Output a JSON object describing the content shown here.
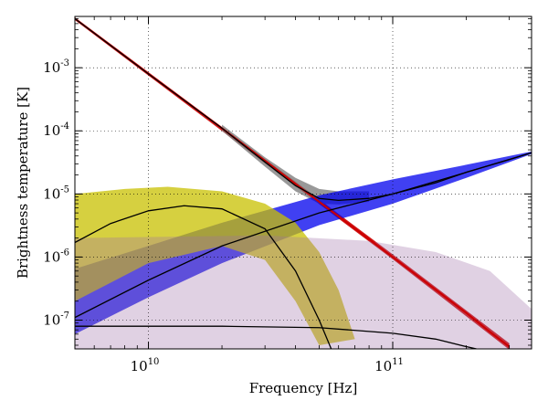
{
  "chart_data": {
    "type": "line",
    "xlabel": "Frequency [Hz]",
    "ylabel": "Brightness temperature [K]",
    "xscale": "log",
    "yscale": "log",
    "xlim": [
      5000000000.0,
      370000000000.0
    ],
    "ylim": [
      3.5e-08,
      0.0065
    ],
    "grid": true,
    "x_ticks": [
      {
        "value": 10000000000.0,
        "base": "10",
        "exp": "10"
      },
      {
        "value": 100000000000.0,
        "base": "10",
        "exp": "11"
      }
    ],
    "y_ticks": [
      {
        "value": 1e-07,
        "base": "10",
        "exp": "-7"
      },
      {
        "value": 1e-06,
        "base": "10",
        "exp": "-6"
      },
      {
        "value": 1e-05,
        "base": "10",
        "exp": "-5"
      },
      {
        "value": 0.0001,
        "base": "10",
        "exp": "-4"
      },
      {
        "value": 0.001,
        "base": "10",
        "exp": "-3"
      }
    ],
    "colors": {
      "total_band": "#808080",
      "powerlaw_band": "#cc0000",
      "rising_band": "#0000ee",
      "peaked_band": "#c8c000",
      "broad_band": "#a070a8",
      "fiducial_line": "#000000"
    },
    "series": [
      {
        "key": "powerlaw",
        "color": "#cc0000",
        "points": [
          [
            5000000000.0,
            0.006
          ],
          [
            10000000000.0,
            0.0008
          ],
          [
            20000000000.0,
            0.00011
          ],
          [
            50000000000.0,
            7.5e-06
          ],
          [
            100000000000.0,
            1e-06
          ],
          [
            200000000000.0,
            1.3e-07
          ],
          [
            250000000000.0,
            6.5e-08
          ],
          [
            300000000000.0,
            3.8e-08
          ]
        ]
      },
      {
        "key": "total",
        "color": "#000000",
        "points": [
          [
            5000000000.0,
            0.006
          ],
          [
            10000000000.0,
            0.0008
          ],
          [
            20000000000.0,
            0.00011
          ],
          [
            30000000000.0,
            3.2e-05
          ],
          [
            40000000000.0,
            1.35e-05
          ],
          [
            50000000000.0,
            8.5e-06
          ],
          [
            60000000000.0,
            7.9e-06
          ],
          [
            80000000000.0,
            8.5e-06
          ],
          [
            100000000000.0,
            1e-05
          ],
          [
            150000000000.0,
            1.5e-05
          ],
          [
            200000000000.0,
            2.2e-05
          ],
          [
            300000000000.0,
            3.5e-05
          ],
          [
            370000000000.0,
            4.5e-05
          ]
        ]
      },
      {
        "key": "rising",
        "color": "#000000",
        "points": [
          [
            5000000000.0,
            1.1e-07
          ],
          [
            10000000000.0,
            4.3e-07
          ],
          [
            20000000000.0,
            1.5e-06
          ],
          [
            50000000000.0,
            5e-06
          ],
          [
            100000000000.0,
            1e-05
          ],
          [
            200000000000.0,
            2.2e-05
          ],
          [
            370000000000.0,
            4.5e-05
          ]
        ]
      },
      {
        "key": "peaked",
        "color": "#000000",
        "points": [
          [
            5000000000.0,
            1.7e-06
          ],
          [
            7000000000.0,
            3.4e-06
          ],
          [
            10000000000.0,
            5.4e-06
          ],
          [
            14000000000.0,
            6.5e-06
          ],
          [
            20000000000.0,
            5.8e-06
          ],
          [
            30000000000.0,
            2.8e-06
          ],
          [
            40000000000.0,
            6e-07
          ],
          [
            50000000000.0,
            1e-07
          ],
          [
            56000000000.0,
            3.5e-08
          ]
        ]
      },
      {
        "key": "broad",
        "color": "#000000",
        "points": [
          [
            5000000000.0,
            8e-08
          ],
          [
            20000000000.0,
            8e-08
          ],
          [
            50000000000.0,
            7.6e-08
          ],
          [
            100000000000.0,
            6.2e-08
          ],
          [
            150000000000.0,
            5e-08
          ],
          [
            200000000000.0,
            3.8e-08
          ],
          [
            220000000000.0,
            3.5e-08
          ]
        ]
      }
    ],
    "bands": [
      {
        "key": "powerlaw",
        "color": "#cc0000",
        "opacity": 0.9,
        "upper": [
          [
            5000000000.0,
            0.0063
          ],
          [
            10000000000.0,
            0.00085
          ],
          [
            50000000000.0,
            8.2e-06
          ],
          [
            100000000000.0,
            1.1e-06
          ],
          [
            300000000000.0,
            4.3e-08
          ]
        ],
        "lower": [
          [
            5000000000.0,
            0.0057
          ],
          [
            10000000000.0,
            0.00075
          ],
          [
            50000000000.0,
            6.9e-06
          ],
          [
            100000000000.0,
            9.2e-07
          ],
          [
            300000000000.0,
            3.4e-08
          ]
        ]
      },
      {
        "key": "total",
        "color": "#808080",
        "opacity": 0.8,
        "upper": [
          [
            20000000000.0,
            0.000125
          ],
          [
            30000000000.0,
            3.8e-05
          ],
          [
            40000000000.0,
            1.8e-05
          ],
          [
            50000000000.0,
            1.2e-05
          ],
          [
            60000000000.0,
            1.1e-05
          ],
          [
            80000000000.0,
            1.1e-05
          ]
        ],
        "lower": [
          [
            20000000000.0,
            0.0001
          ],
          [
            30000000000.0,
            2.7e-05
          ],
          [
            40000000000.0,
            1.1e-05
          ],
          [
            50000000000.0,
            7e-06
          ],
          [
            60000000000.0,
            6.8e-06
          ],
          [
            80000000000.0,
            7.5e-06
          ]
        ]
      },
      {
        "key": "rising",
        "color": "#0000ee",
        "opacity": 0.75,
        "upper": [
          [
            5000000000.0,
            6.5e-07
          ],
          [
            10000000000.0,
            1.5e-06
          ],
          [
            20000000000.0,
            3.5e-06
          ],
          [
            50000000000.0,
            9.5e-06
          ],
          [
            100000000000.0,
            1.7e-05
          ],
          [
            200000000000.0,
            2.9e-05
          ],
          [
            370000000000.0,
            4.7e-05
          ]
        ],
        "lower": [
          [
            5000000000.0,
            6e-08
          ],
          [
            10000000000.0,
            2.3e-07
          ],
          [
            20000000000.0,
            8e-07
          ],
          [
            50000000000.0,
            3.2e-06
          ],
          [
            100000000000.0,
            7e-06
          ],
          [
            200000000000.0,
            1.8e-05
          ],
          [
            370000000000.0,
            4.3e-05
          ]
        ]
      },
      {
        "key": "peaked",
        "color": "#c8c000",
        "opacity": 0.75,
        "upper": [
          [
            5000000000.0,
            1e-05
          ],
          [
            8000000000.0,
            1.2e-05
          ],
          [
            12000000000.0,
            1.3e-05
          ],
          [
            20000000000.0,
            1.1e-05
          ],
          [
            30000000000.0,
            7e-06
          ],
          [
            40000000000.0,
            3.5e-06
          ],
          [
            50000000000.0,
            1.2e-06
          ],
          [
            60000000000.0,
            3e-07
          ],
          [
            70000000000.0,
            5e-08
          ]
        ],
        "lower": [
          [
            5000000000.0,
            2e-07
          ],
          [
            10000000000.0,
            8e-07
          ],
          [
            20000000000.0,
            1.5e-06
          ],
          [
            30000000000.0,
            9e-07
          ],
          [
            40000000000.0,
            2e-07
          ],
          [
            50000000000.0,
            4e-08
          ]
        ]
      },
      {
        "key": "broad",
        "color": "#a070a8",
        "opacity": 0.32,
        "upper": [
          [
            5000000000.0,
            2e-06
          ],
          [
            30000000000.0,
            2.2e-06
          ],
          [
            80000000000.0,
            1.8e-06
          ],
          [
            150000000000.0,
            1.2e-06
          ],
          [
            250000000000.0,
            6e-07
          ],
          [
            370000000000.0,
            1.5e-07
          ]
        ],
        "lower": [
          [
            5000000000.0,
            3.5e-08
          ],
          [
            370000000000.0,
            3.5e-08
          ]
        ]
      }
    ]
  }
}
